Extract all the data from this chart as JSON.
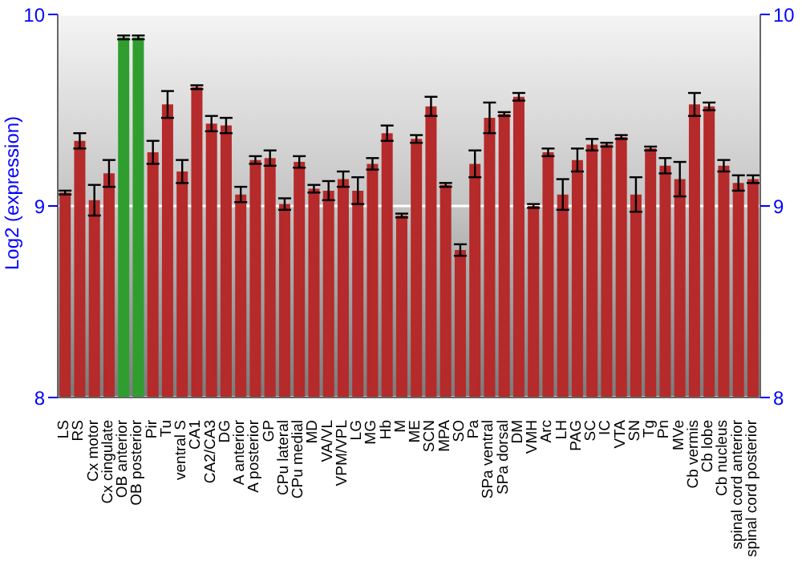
{
  "chart_data": {
    "type": "bar",
    "ylabel": "Log2 (expression)",
    "categories": [
      "LS",
      "RS",
      "Cx motor",
      "Cx cingulate",
      "OB anterior",
      "OB posterior",
      "Pir",
      "Tu",
      "ventral S",
      "CA1",
      "CA2/CA3",
      "DG",
      "A anterior",
      "A posterior",
      "GP",
      "CPu lateral",
      "CPu medial",
      "MD",
      "VA/VL",
      "VPM/VPL",
      "LG",
      "MG",
      "Hb",
      "M",
      "ME",
      "SCN",
      "MPA",
      "SO",
      "Pa",
      "SPa ventral",
      "SPa dorsal",
      "DM",
      "VMH",
      "Arc",
      "LH",
      "PAG",
      "SC",
      "IC",
      "VTA",
      "SN",
      "Tg",
      "Pn",
      "MVe",
      "Cb vermis",
      "Cb lobe",
      "Cb nucleus",
      "spinal cord anterior",
      "spinal cord posterior"
    ],
    "values": [
      9.07,
      9.34,
      9.03,
      9.17,
      9.88,
      9.88,
      9.28,
      9.53,
      9.18,
      9.62,
      9.43,
      9.42,
      9.06,
      9.24,
      9.25,
      9.01,
      9.23,
      9.09,
      9.08,
      9.14,
      9.08,
      9.22,
      9.38,
      8.95,
      9.35,
      9.52,
      9.11,
      8.77,
      9.22,
      9.46,
      9.48,
      9.57,
      9.0,
      9.28,
      9.06,
      9.24,
      9.32,
      9.32,
      9.36,
      9.06,
      9.3,
      9.21,
      9.14,
      9.53,
      9.52,
      9.21,
      9.12,
      9.14
    ],
    "errors": [
      0.01,
      0.04,
      0.08,
      0.07,
      0.01,
      0.01,
      0.06,
      0.07,
      0.06,
      0.01,
      0.04,
      0.04,
      0.04,
      0.02,
      0.04,
      0.03,
      0.03,
      0.02,
      0.05,
      0.04,
      0.07,
      0.03,
      0.04,
      0.01,
      0.02,
      0.05,
      0.01,
      0.03,
      0.07,
      0.08,
      0.01,
      0.02,
      0.01,
      0.02,
      0.08,
      0.06,
      0.03,
      0.01,
      0.01,
      0.09,
      0.01,
      0.04,
      0.09,
      0.06,
      0.02,
      0.03,
      0.04,
      0.02
    ],
    "colors": [
      "#b52a2a",
      "#b52a2a",
      "#b52a2a",
      "#b52a2a",
      "#2f9e2f",
      "#2f9e2f",
      "#b52a2a",
      "#b52a2a",
      "#b52a2a",
      "#b52a2a",
      "#b52a2a",
      "#b52a2a",
      "#b52a2a",
      "#b52a2a",
      "#b52a2a",
      "#b52a2a",
      "#b52a2a",
      "#b52a2a",
      "#b52a2a",
      "#b52a2a",
      "#b52a2a",
      "#b52a2a",
      "#b52a2a",
      "#b52a2a",
      "#b52a2a",
      "#b52a2a",
      "#b52a2a",
      "#b52a2a",
      "#b52a2a",
      "#b52a2a",
      "#b52a2a",
      "#b52a2a",
      "#b52a2a",
      "#b52a2a",
      "#b52a2a",
      "#b52a2a",
      "#b52a2a",
      "#b52a2a",
      "#b52a2a",
      "#b52a2a",
      "#b52a2a",
      "#b52a2a",
      "#b52a2a",
      "#b52a2a",
      "#b52a2a",
      "#b52a2a",
      "#b52a2a",
      "#b52a2a"
    ],
    "ylim": [
      8,
      10
    ],
    "yticks": [
      8,
      9,
      10
    ],
    "y2lim": [
      8,
      10
    ],
    "y2ticks": [
      8,
      9,
      10
    ],
    "grid": "y",
    "legend": false
  }
}
